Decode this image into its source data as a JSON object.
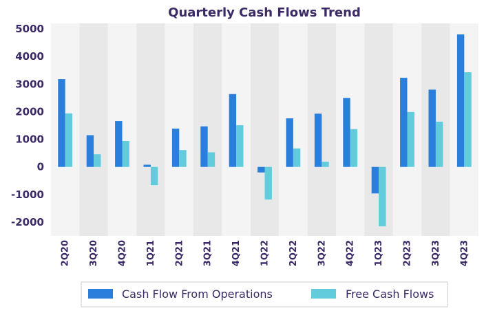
{
  "chart_data": {
    "type": "bar",
    "title": "Quarterly Cash Flows Trend",
    "xlabel": "",
    "ylabel": "",
    "categories": [
      "2Q20",
      "3Q20",
      "4Q20",
      "1Q21",
      "2Q21",
      "3Q21",
      "4Q21",
      "1Q22",
      "2Q22",
      "3Q22",
      "4Q22",
      "1Q23",
      "2Q23",
      "3Q23",
      "4Q23"
    ],
    "series": [
      {
        "name": "Cash Flow From Operations",
        "color": "#2a7fdc",
        "values": [
          3180,
          1150,
          1660,
          80,
          1390,
          1470,
          2640,
          -200,
          1760,
          1930,
          2500,
          -960,
          3230,
          2800,
          4800
        ]
      },
      {
        "name": "Free Cash Flows",
        "color": "#62cbdc",
        "values": [
          1940,
          460,
          940,
          -660,
          610,
          530,
          1510,
          -1180,
          670,
          190,
          1370,
          -2150,
          1990,
          1640,
          3430
        ]
      }
    ],
    "ylim": [
      -2500,
      5200
    ],
    "yticks": [
      -2000,
      -1000,
      0,
      1000,
      2000,
      3000,
      4000,
      5000
    ],
    "grid": false,
    "band_colors": [
      "#f4f4f4",
      "#e8e8e8"
    ],
    "legend_position": "bottom"
  }
}
